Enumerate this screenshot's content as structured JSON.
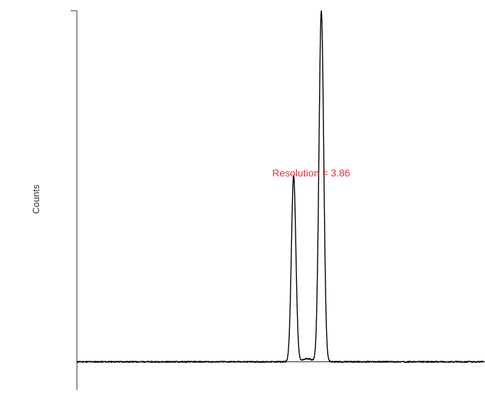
{
  "chart_data": {
    "type": "line",
    "title": "",
    "xlabel": "",
    "ylabel": "Counts",
    "xlim": [
      0,
      100
    ],
    "ylim": [
      -8,
      100
    ],
    "grid": false,
    "legend": "none",
    "annotation": {
      "text": "Resolution = 3.86",
      "color": "#e8303a",
      "x": 57.5,
      "y": 52.8
    },
    "series": [
      {
        "color": "#000000",
        "baseline": 0,
        "peaks": [
          {
            "x": 53.2,
            "height": 53.0,
            "width": 0.55
          },
          {
            "x": 60.0,
            "height": 100.0,
            "width": 0.58
          }
        ]
      }
    ]
  }
}
